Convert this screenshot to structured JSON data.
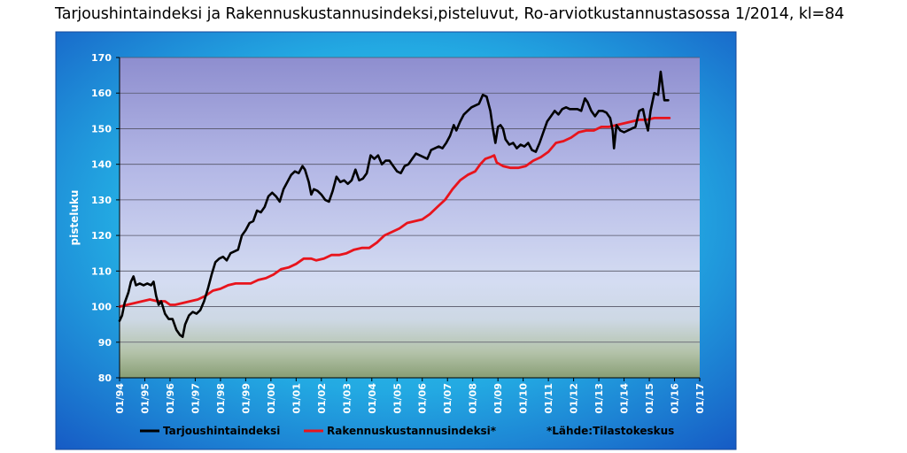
{
  "chart_data": {
    "type": "line",
    "title": "Tarjoushintaindeksi ja Rakennuskustannusindeksi,pisteluvut, Ro-arviotkustannustasossa 1/2014, kl=84",
    "ylabel": "pisteluku",
    "xlabel": "",
    "ylim": [
      80,
      170
    ],
    "yticks": [
      80,
      90,
      100,
      110,
      120,
      130,
      140,
      150,
      160,
      170
    ],
    "xlim": [
      1994.0,
      2017.0
    ],
    "xticks": [
      "01/94",
      "01/95",
      "01/96",
      "01/97",
      "01/98",
      "01/99",
      "01/00",
      "01/01",
      "01/02",
      "01/03",
      "01/04",
      "01/05",
      "01/06",
      "01/07",
      "01/08",
      "01/09",
      "01/10",
      "01/11",
      "01/12",
      "01/13",
      "01/14",
      "01/15",
      "01/16",
      "01/17"
    ],
    "grid": true,
    "legend_position": "bottom",
    "source_note": "*Lähde:Tilastokeskus",
    "colors": {
      "tarjous": "#000000",
      "rakennus": "#e8141c",
      "frame_outer": "#1e7fd2",
      "frame_glow": "#32c8e6"
    },
    "series": [
      {
        "name": "Tarjoushintaindeksi",
        "points": [
          [
            1994.0,
            96
          ],
          [
            1994.1,
            97.5
          ],
          [
            1994.2,
            101
          ],
          [
            1994.35,
            104
          ],
          [
            1994.45,
            107
          ],
          [
            1994.55,
            108.5
          ],
          [
            1994.65,
            106
          ],
          [
            1994.8,
            106.5
          ],
          [
            1994.95,
            106
          ],
          [
            1995.1,
            106.5
          ],
          [
            1995.25,
            106
          ],
          [
            1995.35,
            107
          ],
          [
            1995.45,
            103
          ],
          [
            1995.55,
            100.5
          ],
          [
            1995.65,
            101.5
          ],
          [
            1995.8,
            98
          ],
          [
            1995.95,
            96.5
          ],
          [
            1996.1,
            96.5
          ],
          [
            1996.25,
            93.5
          ],
          [
            1996.4,
            92
          ],
          [
            1996.5,
            91.5
          ],
          [
            1996.6,
            95
          ],
          [
            1996.75,
            97.5
          ],
          [
            1996.9,
            98.5
          ],
          [
            1997.05,
            98
          ],
          [
            1997.2,
            99
          ],
          [
            1997.35,
            101.5
          ],
          [
            1997.5,
            105
          ],
          [
            1997.65,
            109
          ],
          [
            1997.8,
            112.5
          ],
          [
            1997.95,
            113.5
          ],
          [
            1998.1,
            114
          ],
          [
            1998.25,
            113
          ],
          [
            1998.4,
            115
          ],
          [
            1998.55,
            115.5
          ],
          [
            1998.7,
            116
          ],
          [
            1998.85,
            120
          ],
          [
            1999.0,
            121.5
          ],
          [
            1999.15,
            123.5
          ],
          [
            1999.3,
            124
          ],
          [
            1999.45,
            127
          ],
          [
            1999.6,
            126.5
          ],
          [
            1999.75,
            128
          ],
          [
            1999.9,
            131
          ],
          [
            2000.05,
            132
          ],
          [
            2000.2,
            131
          ],
          [
            2000.35,
            129.5
          ],
          [
            2000.5,
            133
          ],
          [
            2000.65,
            135
          ],
          [
            2000.8,
            137
          ],
          [
            2000.95,
            138
          ],
          [
            2001.1,
            137.5
          ],
          [
            2001.25,
            139.5
          ],
          [
            2001.35,
            138.5
          ],
          [
            2001.5,
            135
          ],
          [
            2001.6,
            131.5
          ],
          [
            2001.7,
            133
          ],
          [
            2001.85,
            132.5
          ],
          [
            2002.0,
            131.5
          ],
          [
            2002.15,
            130
          ],
          [
            2002.3,
            129.5
          ],
          [
            2002.45,
            132.5
          ],
          [
            2002.6,
            136.5
          ],
          [
            2002.75,
            135
          ],
          [
            2002.9,
            135.5
          ],
          [
            2003.05,
            134.5
          ],
          [
            2003.2,
            135.5
          ],
          [
            2003.35,
            138.5
          ],
          [
            2003.5,
            135.5
          ],
          [
            2003.65,
            136
          ],
          [
            2003.8,
            137.5
          ],
          [
            2003.95,
            142.5
          ],
          [
            2004.1,
            141.5
          ],
          [
            2004.25,
            142.5
          ],
          [
            2004.4,
            140
          ],
          [
            2004.55,
            141
          ],
          [
            2004.7,
            141
          ],
          [
            2004.85,
            139.5
          ],
          [
            2005.0,
            138
          ],
          [
            2005.15,
            137.5
          ],
          [
            2005.3,
            139.5
          ],
          [
            2005.45,
            140
          ],
          [
            2005.6,
            141.5
          ],
          [
            2005.75,
            143
          ],
          [
            2005.9,
            142.5
          ],
          [
            2006.05,
            142
          ],
          [
            2006.2,
            141.5
          ],
          [
            2006.35,
            144
          ],
          [
            2006.5,
            144.5
          ],
          [
            2006.65,
            145
          ],
          [
            2006.8,
            144.5
          ],
          [
            2006.95,
            146
          ],
          [
            2007.1,
            148
          ],
          [
            2007.25,
            151
          ],
          [
            2007.35,
            149.5
          ],
          [
            2007.5,
            152
          ],
          [
            2007.65,
            154
          ],
          [
            2007.8,
            155
          ],
          [
            2007.95,
            156
          ],
          [
            2008.1,
            156.5
          ],
          [
            2008.25,
            157
          ],
          [
            2008.4,
            159.5
          ],
          [
            2008.55,
            159
          ],
          [
            2008.7,
            155
          ],
          [
            2008.8,
            150
          ],
          [
            2008.9,
            146
          ],
          [
            2009.0,
            150.5
          ],
          [
            2009.1,
            151
          ],
          [
            2009.2,
            150
          ],
          [
            2009.3,
            147
          ],
          [
            2009.45,
            145.5
          ],
          [
            2009.6,
            146
          ],
          [
            2009.75,
            144.5
          ],
          [
            2009.9,
            145.5
          ],
          [
            2010.05,
            145
          ],
          [
            2010.2,
            146
          ],
          [
            2010.35,
            144
          ],
          [
            2010.5,
            143.5
          ],
          [
            2010.65,
            146
          ],
          [
            2010.8,
            149
          ],
          [
            2010.95,
            152
          ],
          [
            2011.1,
            153.5
          ],
          [
            2011.25,
            155
          ],
          [
            2011.4,
            154
          ],
          [
            2011.55,
            155.5
          ],
          [
            2011.7,
            156
          ],
          [
            2011.85,
            155.5
          ],
          [
            2012.0,
            155.5
          ],
          [
            2012.15,
            155.5
          ],
          [
            2012.3,
            155
          ],
          [
            2012.45,
            158.5
          ],
          [
            2012.55,
            157.5
          ],
          [
            2012.7,
            155
          ],
          [
            2012.85,
            153.5
          ],
          [
            2013.0,
            155
          ],
          [
            2013.15,
            155
          ],
          [
            2013.3,
            154.5
          ],
          [
            2013.45,
            153
          ],
          [
            2013.55,
            149.5
          ],
          [
            2013.6,
            144.5
          ],
          [
            2013.7,
            151
          ],
          [
            2013.85,
            149.5
          ],
          [
            2014.0,
            149
          ],
          [
            2014.15,
            149.5
          ],
          [
            2014.3,
            150
          ],
          [
            2014.45,
            150.5
          ],
          [
            2014.6,
            155
          ],
          [
            2014.75,
            155.5
          ],
          [
            2014.85,
            152
          ],
          [
            2014.95,
            149.5
          ],
          [
            2015.05,
            155
          ],
          [
            2015.2,
            160
          ],
          [
            2015.35,
            159.5
          ],
          [
            2015.45,
            166
          ],
          [
            2015.6,
            158
          ],
          [
            2015.75,
            158
          ]
        ]
      },
      {
        "name": "Rakennuskustannusindeksi*",
        "points": [
          [
            1994.0,
            100
          ],
          [
            1994.3,
            100.5
          ],
          [
            1994.6,
            101
          ],
          [
            1994.9,
            101.5
          ],
          [
            1995.2,
            102
          ],
          [
            1995.5,
            101.5
          ],
          [
            1995.8,
            101.5
          ],
          [
            1996.0,
            100.5
          ],
          [
            1996.2,
            100.5
          ],
          [
            1996.5,
            101
          ],
          [
            1996.8,
            101.5
          ],
          [
            1997.1,
            102
          ],
          [
            1997.4,
            103
          ],
          [
            1997.7,
            104.5
          ],
          [
            1998.0,
            105
          ],
          [
            1998.3,
            106
          ],
          [
            1998.6,
            106.5
          ],
          [
            1998.9,
            106.5
          ],
          [
            1999.2,
            106.5
          ],
          [
            1999.5,
            107.5
          ],
          [
            1999.8,
            108
          ],
          [
            2000.1,
            109
          ],
          [
            2000.4,
            110.5
          ],
          [
            2000.7,
            111
          ],
          [
            2001.0,
            112
          ],
          [
            2001.3,
            113.5
          ],
          [
            2001.6,
            113.5
          ],
          [
            2001.8,
            113
          ],
          [
            2002.1,
            113.5
          ],
          [
            2002.4,
            114.5
          ],
          [
            2002.7,
            114.5
          ],
          [
            2003.0,
            115
          ],
          [
            2003.3,
            116
          ],
          [
            2003.6,
            116.5
          ],
          [
            2003.9,
            116.5
          ],
          [
            2004.2,
            118
          ],
          [
            2004.5,
            120
          ],
          [
            2004.8,
            121
          ],
          [
            2005.1,
            122
          ],
          [
            2005.4,
            123.5
          ],
          [
            2005.7,
            124
          ],
          [
            2006.0,
            124.5
          ],
          [
            2006.3,
            126
          ],
          [
            2006.6,
            128
          ],
          [
            2006.9,
            130
          ],
          [
            2007.2,
            133
          ],
          [
            2007.5,
            135.5
          ],
          [
            2007.8,
            137
          ],
          [
            2008.1,
            138
          ],
          [
            2008.3,
            140
          ],
          [
            2008.5,
            141.5
          ],
          [
            2008.7,
            142
          ],
          [
            2008.85,
            142.5
          ],
          [
            2008.95,
            140.5
          ],
          [
            2009.2,
            139.5
          ],
          [
            2009.5,
            139
          ],
          [
            2009.8,
            139
          ],
          [
            2010.1,
            139.5
          ],
          [
            2010.4,
            141
          ],
          [
            2010.7,
            142
          ],
          [
            2011.0,
            143.5
          ],
          [
            2011.3,
            146
          ],
          [
            2011.6,
            146.5
          ],
          [
            2011.9,
            147.5
          ],
          [
            2012.2,
            149
          ],
          [
            2012.5,
            149.5
          ],
          [
            2012.8,
            149.5
          ],
          [
            2013.1,
            150.5
          ],
          [
            2013.4,
            150.5
          ],
          [
            2013.7,
            151
          ],
          [
            2014.0,
            151.5
          ],
          [
            2014.3,
            152
          ],
          [
            2014.6,
            152.5
          ],
          [
            2014.9,
            152.5
          ],
          [
            2015.2,
            153
          ],
          [
            2015.5,
            153
          ],
          [
            2015.8,
            153
          ]
        ]
      }
    ]
  }
}
